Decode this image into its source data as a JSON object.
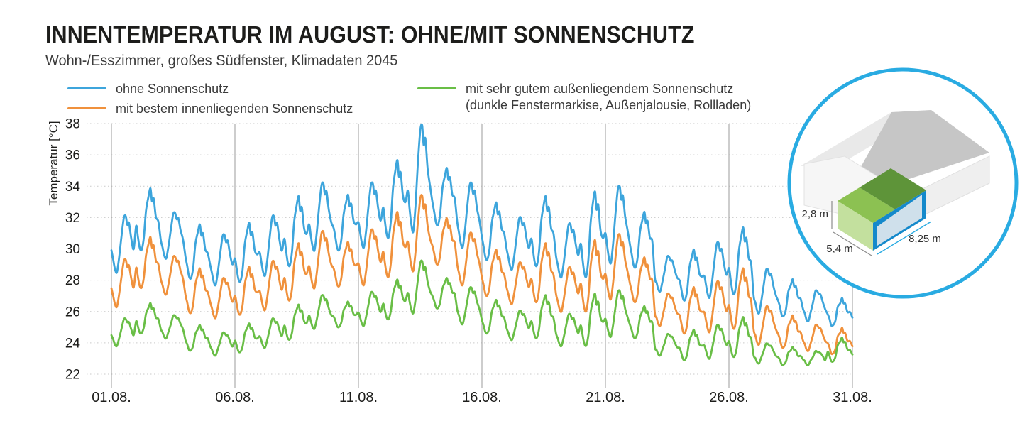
{
  "header": {
    "title": "INNENTEMPERATUR IM AUGUST: OHNE/MIT SONNENSCHUTZ",
    "subtitle": "Wohn-/Esszimmer, großes Südfenster, Klimadaten 2045"
  },
  "legend": {
    "items": [
      {
        "label": "ohne Sonnenschutz",
        "color": "#3DA5DC"
      },
      {
        "label": "mit bestem innenliegenden Sonnenschutz",
        "color": "#F0913C"
      },
      {
        "label": "mit sehr gutem außenliegendem Sonnenschutz",
        "label2": "(dunkle Fenstermarkise, Außenjalousie, Rollladen)",
        "color": "#69BE46"
      }
    ]
  },
  "chart_data": {
    "type": "line",
    "title": "INNENTEMPERATUR IM AUGUST: OHNE/MIT SONNENSCHUTZ",
    "subtitle": "Wohn-/Esszimmer, großes Südfenster, Klimadaten 2045",
    "xlabel": "",
    "ylabel": "Temperatur [°C]",
    "x_tick_labels": [
      "01.08.",
      "06.08.",
      "11.08.",
      "16.08.",
      "21.08.",
      "26.08.",
      "31.08."
    ],
    "x_tick_days": [
      0,
      5,
      10,
      15,
      20,
      25,
      30
    ],
    "y_ticks": [
      22,
      24,
      26,
      28,
      30,
      32,
      34,
      36,
      38
    ],
    "ylim": [
      22,
      38
    ],
    "days": 30,
    "grid": {
      "vertical": "solid",
      "horizontal": "dotted"
    },
    "legend_position": "top",
    "series": [
      {
        "name": "ohne Sonnenschutz",
        "color": "#3DA5DC",
        "noise": 1.0,
        "daily_max": [
          32.2,
          33.8,
          32.4,
          31.5,
          31.0,
          31.6,
          32.2,
          33.3,
          34.3,
          33.4,
          34.3,
          35.6,
          38.0,
          35.1,
          34.3,
          32.9,
          32.1,
          33.3,
          31.7,
          33.6,
          34.1,
          32.3,
          29.6,
          29.9,
          30.5,
          31.3,
          28.8,
          28.0,
          27.4,
          26.8
        ],
        "daily_min": [
          28.5,
          29.9,
          29.4,
          28.1,
          27.7,
          27.9,
          28.3,
          28.9,
          29.9,
          29.9,
          30.1,
          30.7,
          31.1,
          31.5,
          30.1,
          29.3,
          28.7,
          28.9,
          28.2,
          28.2,
          29.1,
          28.8,
          27.3,
          26.7,
          26.9,
          27.1,
          25.9,
          25.7,
          25.4,
          25.1
        ]
      },
      {
        "name": "mit bestem innenliegenden Sonnenschutz",
        "color": "#F0913C",
        "noise": 0.9,
        "daily_max": [
          29.4,
          30.7,
          29.6,
          28.7,
          28.2,
          28.8,
          29.3,
          30.3,
          31.2,
          30.4,
          31.3,
          32.3,
          33.5,
          31.9,
          31.1,
          29.9,
          29.2,
          30.3,
          28.9,
          30.5,
          31.0,
          29.4,
          27.2,
          27.5,
          28.0,
          28.7,
          26.4,
          25.7,
          25.2,
          24.9
        ],
        "daily_min": [
          26.3,
          27.5,
          27.1,
          25.9,
          25.6,
          25.8,
          26.1,
          26.7,
          27.5,
          27.6,
          27.7,
          28.2,
          28.6,
          29.0,
          27.7,
          27.0,
          26.5,
          26.6,
          26.0,
          26.0,
          26.8,
          26.6,
          25.1,
          24.6,
          24.7,
          24.9,
          23.9,
          23.7,
          23.5,
          23.3
        ]
      },
      {
        "name": "mit sehr gutem außenliegendem Sonnenschutz (dunkle Fenstermarkise, Außenjalousie, Rollladen)",
        "color": "#69BE46",
        "noise": 0.7,
        "daily_max": [
          25.6,
          26.5,
          25.8,
          25.1,
          24.7,
          25.2,
          25.6,
          26.4,
          27.1,
          26.6,
          27.3,
          28.0,
          29.3,
          28.1,
          27.6,
          26.7,
          26.1,
          27.0,
          25.9,
          27.1,
          27.4,
          26.3,
          24.6,
          24.8,
          25.2,
          25.6,
          24.0,
          23.7,
          23.5,
          24.3
        ],
        "daily_min": [
          23.8,
          24.6,
          24.3,
          23.5,
          23.2,
          23.4,
          23.7,
          24.2,
          24.9,
          25.0,
          25.1,
          25.5,
          25.9,
          26.2,
          25.2,
          24.6,
          24.2,
          24.3,
          23.8,
          23.8,
          24.4,
          24.3,
          23.2,
          22.9,
          23.0,
          23.1,
          22.7,
          22.6,
          22.6,
          22.8
        ]
      }
    ],
    "day_profile": [
      {
        "t": 0.0,
        "f": 0.38
      },
      {
        "t": 0.07,
        "f": 0.2
      },
      {
        "t": 0.14,
        "f": 0.08
      },
      {
        "t": 0.22,
        "f": 0.0
      },
      {
        "t": 0.31,
        "f": 0.22
      },
      {
        "t": 0.4,
        "f": 0.62
      },
      {
        "t": 0.5,
        "f": 0.92
      },
      {
        "t": 0.58,
        "f": 1.0
      },
      {
        "t": 0.64,
        "f": 0.78
      },
      {
        "t": 0.71,
        "f": 0.87
      },
      {
        "t": 0.8,
        "f": 0.58
      },
      {
        "t": 0.9,
        "f": 0.44
      }
    ],
    "texture": [
      0,
      0.1,
      -0.07,
      0,
      0.12,
      -0.1,
      0.06,
      -0.12,
      0.15,
      -0.06,
      0.05,
      -0.14,
      0.08,
      0.12,
      -0.12,
      0.03,
      -0.05,
      0.12,
      -0.15,
      0.06,
      0.1,
      -0.08,
      -0.12,
      0.12
    ]
  },
  "inset": {
    "dim_height": "2,8 m",
    "dim_depth": "5,4 m",
    "dim_width": "8,25 m",
    "circle_color": "#29ABE2"
  }
}
